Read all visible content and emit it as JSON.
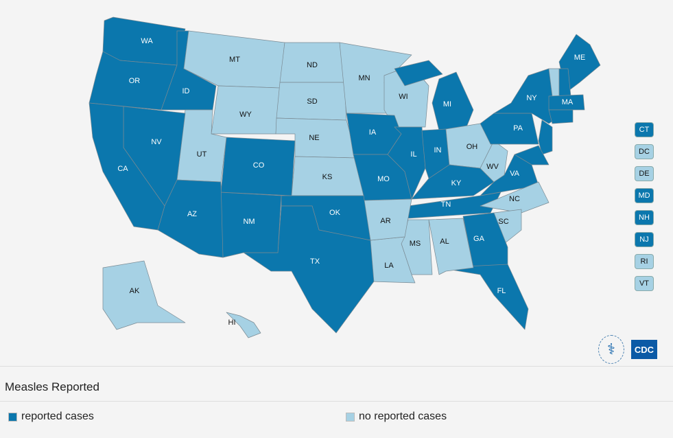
{
  "colors": {
    "reported": "#0b77ad",
    "none": "#a6d1e4"
  },
  "states": [
    {
      "code": "WA",
      "status": "reported"
    },
    {
      "code": "OR",
      "status": "reported"
    },
    {
      "code": "CA",
      "status": "reported"
    },
    {
      "code": "ID",
      "status": "reported"
    },
    {
      "code": "NV",
      "status": "reported"
    },
    {
      "code": "MT",
      "status": "none"
    },
    {
      "code": "WY",
      "status": "none"
    },
    {
      "code": "UT",
      "status": "none"
    },
    {
      "code": "AZ",
      "status": "reported"
    },
    {
      "code": "CO",
      "status": "reported"
    },
    {
      "code": "NM",
      "status": "reported"
    },
    {
      "code": "ND",
      "status": "none"
    },
    {
      "code": "SD",
      "status": "none"
    },
    {
      "code": "NE",
      "status": "none"
    },
    {
      "code": "KS",
      "status": "none"
    },
    {
      "code": "OK",
      "status": "reported"
    },
    {
      "code": "TX",
      "status": "reported"
    },
    {
      "code": "MN",
      "status": "none"
    },
    {
      "code": "IA",
      "status": "reported"
    },
    {
      "code": "MO",
      "status": "reported"
    },
    {
      "code": "AR",
      "status": "none"
    },
    {
      "code": "LA",
      "status": "none"
    },
    {
      "code": "WI",
      "status": "none"
    },
    {
      "code": "IL",
      "status": "reported"
    },
    {
      "code": "MI",
      "status": "reported"
    },
    {
      "code": "IN",
      "status": "reported"
    },
    {
      "code": "OH",
      "status": "none"
    },
    {
      "code": "KY",
      "status": "reported"
    },
    {
      "code": "TN",
      "status": "reported"
    },
    {
      "code": "MS",
      "status": "none"
    },
    {
      "code": "AL",
      "status": "none"
    },
    {
      "code": "GA",
      "status": "reported"
    },
    {
      "code": "FL",
      "status": "reported"
    },
    {
      "code": "SC",
      "status": "none"
    },
    {
      "code": "NC",
      "status": "none"
    },
    {
      "code": "VA",
      "status": "reported"
    },
    {
      "code": "WV",
      "status": "none"
    },
    {
      "code": "PA",
      "status": "reported"
    },
    {
      "code": "NY",
      "status": "reported"
    },
    {
      "code": "ME",
      "status": "reported"
    },
    {
      "code": "MA",
      "status": "reported"
    },
    {
      "code": "AK",
      "status": "none"
    },
    {
      "code": "HI",
      "status": "none"
    }
  ],
  "small_states": [
    {
      "code": "CT",
      "status": "reported"
    },
    {
      "code": "DC",
      "status": "none"
    },
    {
      "code": "DE",
      "status": "none"
    },
    {
      "code": "MD",
      "status": "reported"
    },
    {
      "code": "NH",
      "status": "reported"
    },
    {
      "code": "NJ",
      "status": "reported"
    },
    {
      "code": "RI",
      "status": "none"
    },
    {
      "code": "VT",
      "status": "none"
    }
  ],
  "title": "Measles Reported",
  "legend": [
    {
      "label": "reported cases",
      "status": "reported"
    },
    {
      "label": "no reported cases",
      "status": "none"
    }
  ]
}
